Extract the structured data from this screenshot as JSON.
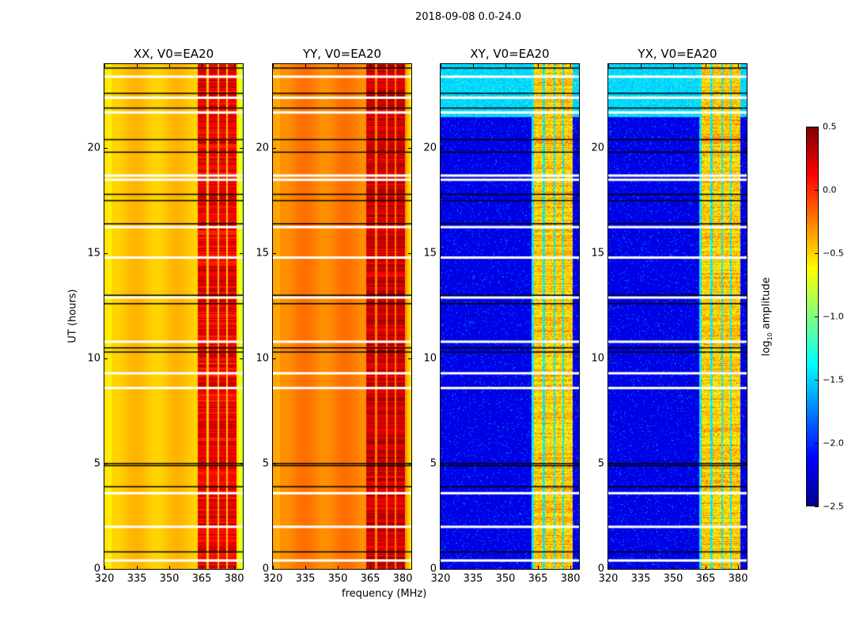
{
  "chart_data": {
    "type": "heatmap",
    "title": "2018-09-08 0.0-24.0",
    "xlabel": "frequency (MHz)",
    "ylabel": "UT (hours)",
    "xlim": [
      320,
      384
    ],
    "ylim": [
      0,
      24
    ],
    "xticks": [
      "320",
      "335",
      "350",
      "365",
      "380"
    ],
    "xtick_values": [
      320,
      335,
      350,
      365,
      380
    ],
    "yticks": [
      "0",
      "5",
      "10",
      "15",
      "20"
    ],
    "ytick_values": [
      0,
      5,
      10,
      15,
      20
    ],
    "panels": [
      {
        "title": "XX, V0=EA20",
        "base": -0.45,
        "rfi": 0.05,
        "cross": false
      },
      {
        "title": "YY, V0=EA20",
        "base": -0.25,
        "rfi": 0.15,
        "cross": false
      },
      {
        "title": "XY, V0=EA20",
        "base": -2.3,
        "rfi": -0.8,
        "cross": true
      },
      {
        "title": "YX, V0=EA20",
        "base": -2.3,
        "rfi": -0.8,
        "cross": true
      }
    ],
    "rfi_subbands_mhz": [
      [
        363,
        367
      ],
      [
        368,
        372
      ],
      [
        373,
        376
      ],
      [
        377,
        381
      ]
    ],
    "flagged_white_hours": [
      23.4,
      22.4,
      21.7,
      18.7,
      18.5,
      16.25,
      14.8,
      12.9,
      10.8,
      9.3,
      8.6,
      3.6,
      2.0,
      0.4
    ],
    "flagged_black_hours": [
      23.8,
      22.6,
      21.9,
      20.4,
      19.8,
      17.8,
      17.5,
      16.4,
      13.0,
      12.6,
      10.5,
      10.3,
      5.0,
      4.9,
      3.9,
      0.8
    ],
    "colorbar": {
      "label": "log10 amplitude",
      "label_main": "log",
      "label_sub": "10",
      "label_rest": " amplitude",
      "range": [
        -2.5,
        0.5
      ],
      "ticks": [
        "0.5",
        "0.0",
        "−0.5",
        "−1.0",
        "−1.5",
        "−2.0",
        "−2.5"
      ],
      "tick_values": [
        0.5,
        0,
        -0.5,
        -1,
        -1.5,
        -2,
        -2.5
      ]
    }
  }
}
